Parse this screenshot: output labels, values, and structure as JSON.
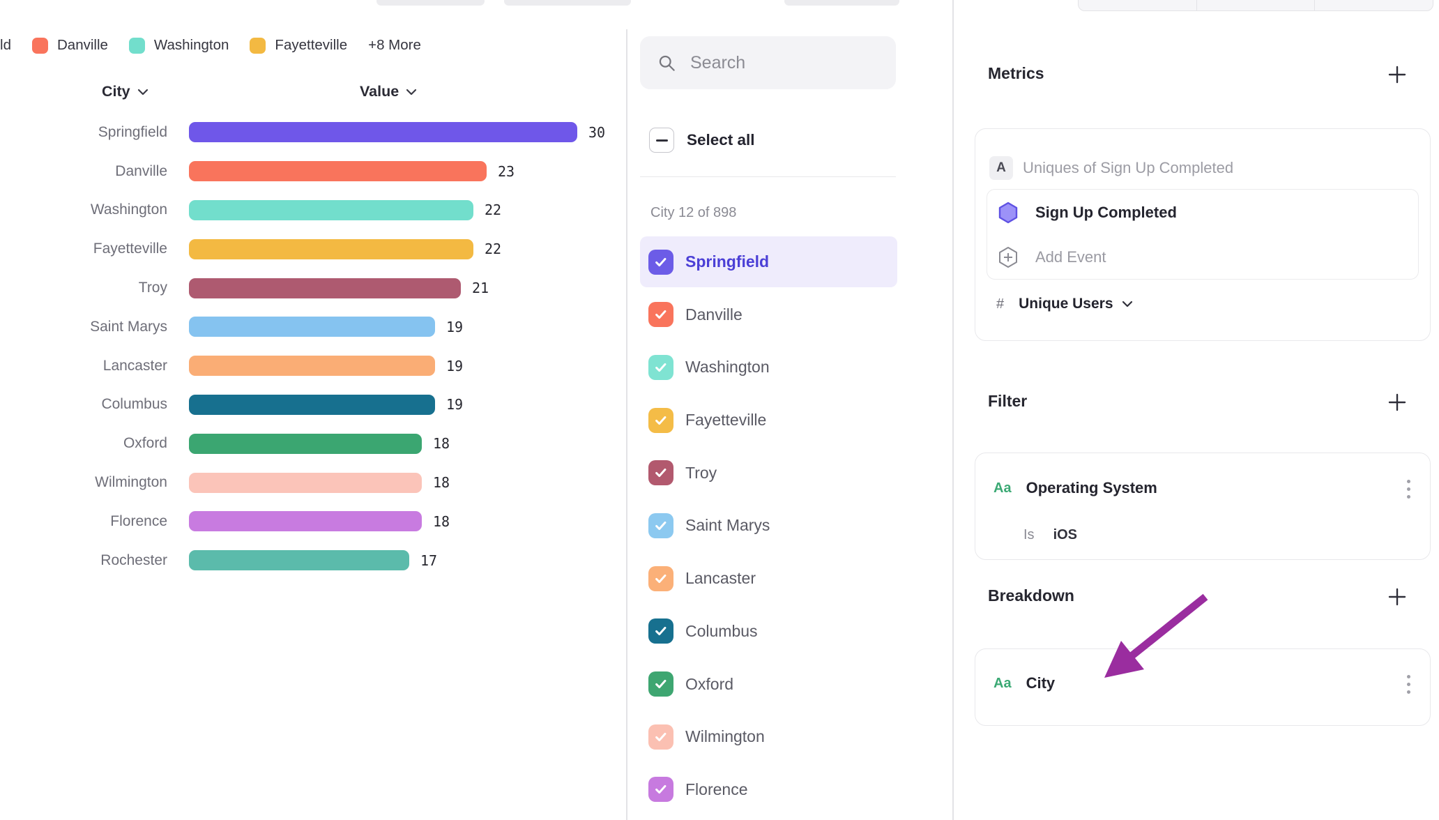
{
  "legend": {
    "clipped_item": "Springfield",
    "items": [
      {
        "label": "Danville",
        "color": "#F9745C"
      },
      {
        "label": "Washington",
        "color": "#72DECC"
      },
      {
        "label": "Fayetteville",
        "color": "#F3B942"
      }
    ],
    "more_label": "+8 More"
  },
  "chart_data": {
    "type": "bar",
    "orientation": "horizontal",
    "column_headers": {
      "category": "City",
      "value": "Value"
    },
    "categories": [
      "Springfield",
      "Danville",
      "Washington",
      "Fayetteville",
      "Troy",
      "Saint Marys",
      "Lancaster",
      "Columbus",
      "Oxford",
      "Wilmington",
      "Florence",
      "Rochester"
    ],
    "values": [
      30,
      23,
      22,
      22,
      21,
      19,
      19,
      19,
      18,
      18,
      18,
      17
    ],
    "colors": [
      "#6F57E9",
      "#F9745C",
      "#72DECC",
      "#F3B942",
      "#AE5A70",
      "#85C3F0",
      "#FAAD75",
      "#17708F",
      "#3BA671",
      "#FBC4B9",
      "#C87BE0",
      "#5BBBAB"
    ],
    "xlim": [
      0,
      30
    ],
    "title": "",
    "xlabel": "Value",
    "ylabel": "City"
  },
  "city_filter_panel": {
    "search_placeholder": "Search",
    "select_all_label": "Select all",
    "select_all_state": "indeterminate",
    "count_label": "City 12 of 898",
    "items": [
      {
        "label": "Springfield",
        "color": "#6C5CE7",
        "checked": true,
        "highlighted": true
      },
      {
        "label": "Danville",
        "color": "#F9745C",
        "checked": true,
        "highlighted": false
      },
      {
        "label": "Washington",
        "color": "#7FE3D2",
        "checked": true,
        "highlighted": false
      },
      {
        "label": "Fayetteville",
        "color": "#F4BC47",
        "checked": true,
        "highlighted": false
      },
      {
        "label": "Troy",
        "color": "#B2596E",
        "checked": true,
        "highlighted": false
      },
      {
        "label": "Saint Marys",
        "color": "#8CC9F0",
        "checked": true,
        "highlighted": false
      },
      {
        "label": "Lancaster",
        "color": "#FBB078",
        "checked": true,
        "highlighted": false
      },
      {
        "label": "Columbus",
        "color": "#17708F",
        "checked": true,
        "highlighted": false
      },
      {
        "label": "Oxford",
        "color": "#3EA671",
        "checked": true,
        "highlighted": false
      },
      {
        "label": "Wilmington",
        "color": "#FBC0B2",
        "checked": true,
        "highlighted": false
      },
      {
        "label": "Florence",
        "color": "#C77ADF",
        "checked": true,
        "highlighted": false
      }
    ]
  },
  "inspector": {
    "metrics": {
      "title": "Metrics",
      "row_badge": "A",
      "row_label": "Uniques of Sign Up Completed",
      "event_name": "Sign Up Completed",
      "add_event_label": "Add Event",
      "count_symbol": "#",
      "aggregation_label": "Unique Users"
    },
    "filter": {
      "title": "Filter",
      "type_icon": "Aa",
      "property": "Operating System",
      "operator": "Is",
      "value": "iOS"
    },
    "breakdown": {
      "title": "Breakdown",
      "type_icon": "Aa",
      "property": "City"
    }
  },
  "colors": {
    "accent_purple": "#6C5CE7",
    "selected_row_bg": "#EFECFC",
    "selected_text": "#4B3FD6",
    "type_icon_green": "#3BA974",
    "annotation_arrow": "#9A2D9F",
    "hexagon_fill": "#9C92F8",
    "hexagon_stroke": "#5F51E3"
  }
}
